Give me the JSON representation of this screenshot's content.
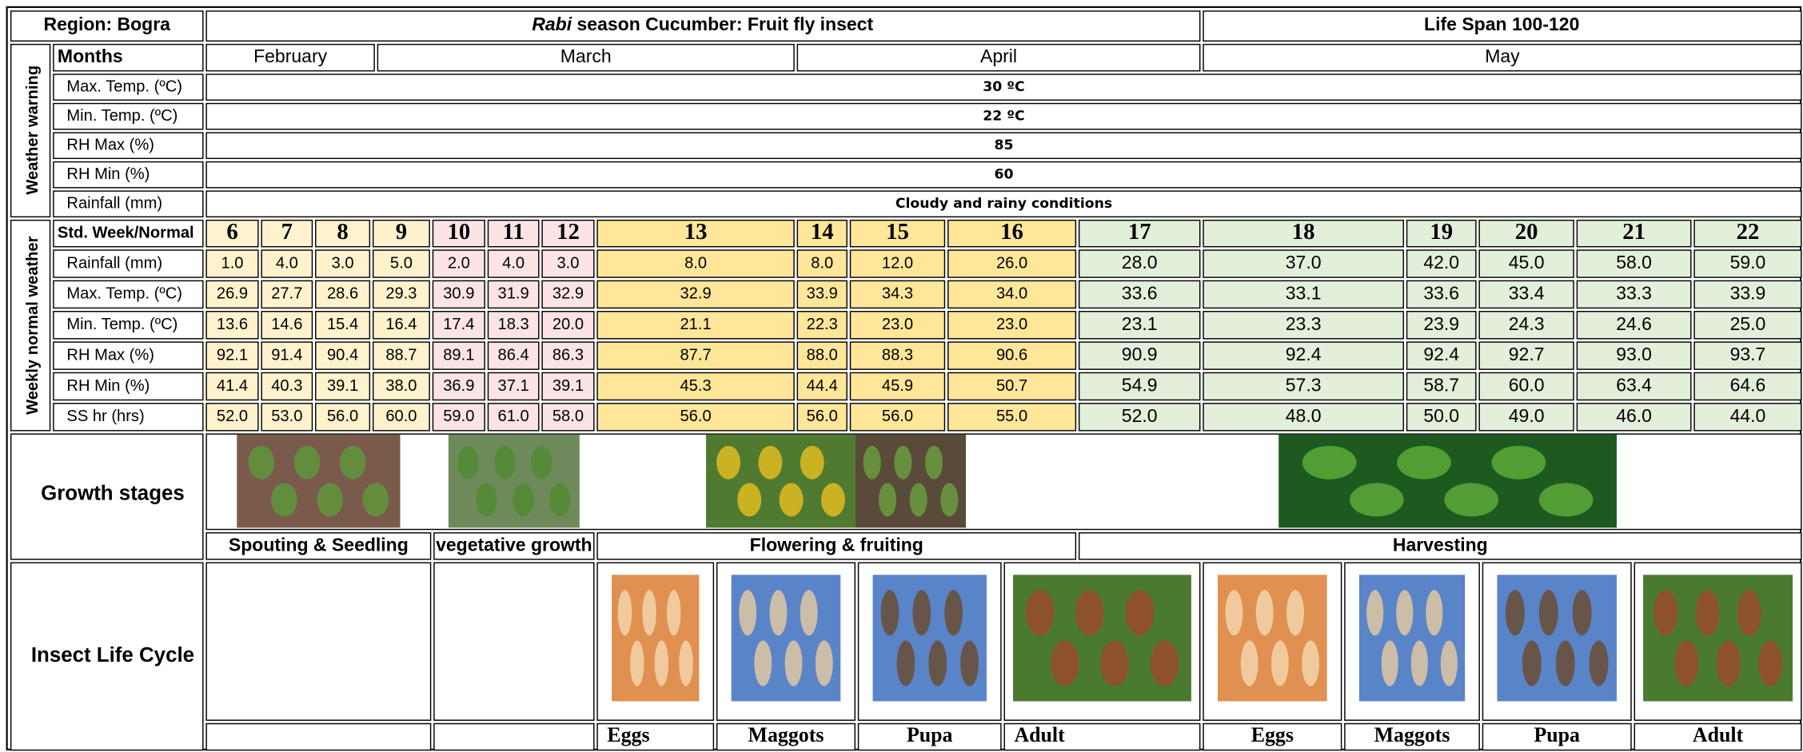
{
  "header": {
    "region": "Region: Bogra",
    "title_italic": "Rabi",
    "title_rest": " season Cucumber: Fruit fly insect",
    "life_span": "Life Span 100-120"
  },
  "months": {
    "label": "Months",
    "names": [
      "February",
      "March",
      "April",
      "May"
    ]
  },
  "weather_warning": {
    "label": "Weather warning",
    "rows": [
      {
        "label": "Max. Temp. (ºC)",
        "value": "30 ºC"
      },
      {
        "label": "Min. Temp. (ºC)",
        "value": "22 ºC"
      },
      {
        "label": "RH Max (%)",
        "value": "85"
      },
      {
        "label": "RH Min (%)",
        "value": "60"
      },
      {
        "label": "Rainfall (mm)",
        "value": "Cloudy and rainy conditions"
      }
    ]
  },
  "weekly": {
    "label": "Weekly normal weather",
    "week_label": "Std. Week/Normal",
    "weeks": [
      "6",
      "7",
      "8",
      "9",
      "10",
      "11",
      "12",
      "13",
      "14",
      "15",
      "16",
      "17",
      "18",
      "19",
      "20",
      "21",
      "22"
    ],
    "rows": [
      {
        "label": "Rainfall (mm)",
        "values": [
          "1.0",
          "4.0",
          "3.0",
          "5.0",
          "2.0",
          "4.0",
          "3.0",
          "8.0",
          "8.0",
          "12.0",
          "26.0",
          "28.0",
          "37.0",
          "42.0",
          "45.0",
          "58.0",
          "59.0"
        ]
      },
      {
        "label": "Max. Temp. (ºC)",
        "values": [
          "26.9",
          "27.7",
          "28.6",
          "29.3",
          "30.9",
          "31.9",
          "32.9",
          "32.9",
          "33.9",
          "34.3",
          "34.0",
          "33.6",
          "33.1",
          "33.6",
          "33.4",
          "33.3",
          "33.9"
        ]
      },
      {
        "label": "Min. Temp. (ºC)",
        "values": [
          "13.6",
          "14.6",
          "15.4",
          "16.4",
          "17.4",
          "18.3",
          "20.0",
          "21.1",
          "22.3",
          "23.0",
          "23.0",
          "23.1",
          "23.3",
          "23.9",
          "24.3",
          "24.6",
          "25.0"
        ]
      },
      {
        "label": "RH Max (%)",
        "values": [
          "92.1",
          "91.4",
          "90.4",
          "88.7",
          "89.1",
          "86.4",
          "86.3",
          "87.7",
          "88.0",
          "88.3",
          "90.6",
          "90.9",
          "92.4",
          "92.4",
          "92.7",
          "93.0",
          "93.7"
        ]
      },
      {
        "label": "RH Min (%)",
        "values": [
          "41.4",
          "40.3",
          "39.1",
          "38.0",
          "36.9",
          "37.1",
          "39.1",
          "45.3",
          "44.4",
          "45.9",
          "50.7",
          "54.9",
          "57.3",
          "58.7",
          "60.0",
          "63.4",
          "64.6"
        ]
      },
      {
        "label": "SS hr (hrs)",
        "values": [
          "52.0",
          "53.0",
          "56.0",
          "60.0",
          "59.0",
          "61.0",
          "58.0",
          "56.0",
          "56.0",
          "56.0",
          "55.0",
          "52.0",
          "48.0",
          "50.0",
          "49.0",
          "46.0",
          "44.0"
        ]
      }
    ]
  },
  "growth": {
    "label": "Growth stages",
    "stages": [
      "Spouting & Seedling",
      "vegetative growth",
      "Flowering & fruiting",
      "Harvesting"
    ]
  },
  "insect": {
    "label": "Insect Life Cycle",
    "stages": [
      "Eggs",
      "Maggots",
      "Pupa",
      "Adult",
      "Eggs",
      "Maggots",
      "Pupa",
      "Adult"
    ]
  }
}
